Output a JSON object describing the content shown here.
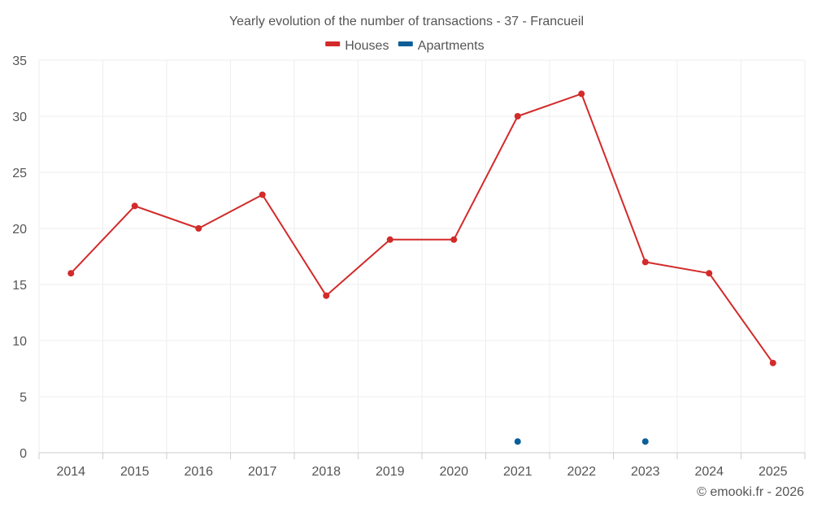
{
  "chart_data": {
    "type": "line",
    "title": "Yearly evolution of the number of transactions - 37 - Francueil",
    "categories": [
      "2014",
      "2015",
      "2016",
      "2017",
      "2018",
      "2019",
      "2020",
      "2021",
      "2022",
      "2023",
      "2024",
      "2025"
    ],
    "ylim": [
      0,
      35
    ],
    "yticks": [
      0,
      5,
      10,
      15,
      20,
      25,
      30,
      35
    ],
    "grid": true,
    "legend_position": "top-center",
    "series": [
      {
        "name": "Houses",
        "color": "#d32a2a",
        "values": [
          16,
          22,
          20,
          23,
          14,
          19,
          19,
          30,
          32,
          17,
          16,
          8
        ]
      },
      {
        "name": "Apartments",
        "color": "#0b5f99",
        "values": [
          null,
          null,
          null,
          null,
          null,
          null,
          null,
          1,
          null,
          1,
          null,
          null
        ]
      }
    ]
  },
  "credit": "© emooki.fr - 2026"
}
